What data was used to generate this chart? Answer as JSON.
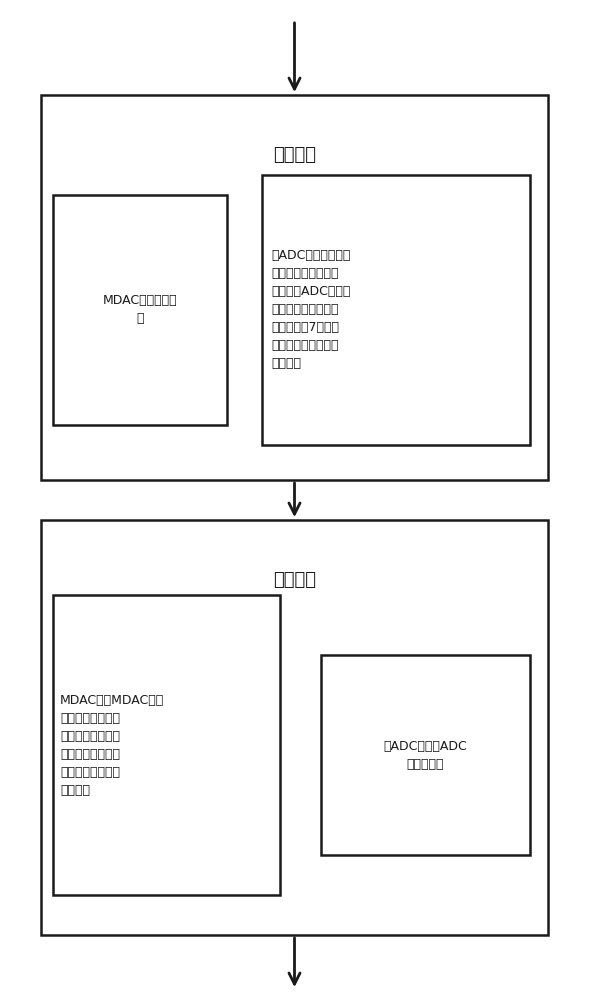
{
  "bg_color": "#ffffff",
  "line_color": "#1a1a1a",
  "fig_width": 5.89,
  "fig_height": 10.0,
  "title1": "采样阶段",
  "title2": "放大阶段",
  "text_box1_left": "MDAC采样输入信\n号",
  "text_box1_right": "子ADC采样输入信号\n并存储与上一周期中\n采样的子ADC的参考\n电压的差值，该差值\n处理后得到7位温度\n计码并经编码后得到\n数字信号",
  "text_box2_left": "MDAC采样MDAC的参\n考电压并存储与本\n周期采样的输入信\n号的差值，该差值\n经运算放大后得到\n模拟信号",
  "text_box2_right": "子ADC采样子ADC\n的参考电压",
  "fontsize_title": 13,
  "fontsize_text": 9.0
}
